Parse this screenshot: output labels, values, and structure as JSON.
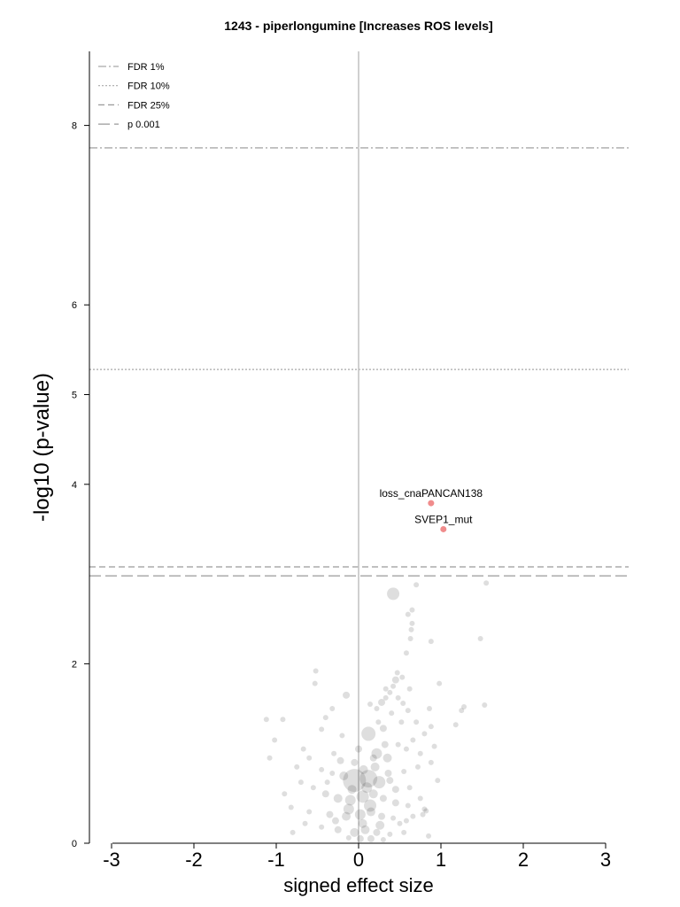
{
  "chart_data": {
    "type": "scatter",
    "title": "1243 - piperlongumine [Increases ROS levels]",
    "xlabel": "signed effect size",
    "ylabel": "-log10 (p-value)",
    "xlim": [
      -3.25,
      3.3
    ],
    "ylim": [
      0,
      8.8
    ],
    "xticks": [
      "-3",
      "-2",
      "-1",
      "0",
      "1",
      "2",
      "3"
    ],
    "xtick_values": [
      -3,
      -2,
      -1,
      0,
      1,
      2,
      3
    ],
    "yticks": [
      "0",
      "2",
      "4",
      "5",
      "6",
      "8"
    ],
    "ytick_values": [
      0,
      2,
      4,
      5,
      6,
      8
    ],
    "legend_position": "top-left",
    "thresholds": [
      {
        "label": "FDR 1%",
        "y": 7.75,
        "style": "dashdot"
      },
      {
        "label": "FDR 10%",
        "y": 5.28,
        "style": "dotted"
      },
      {
        "label": "FDR 25%",
        "y": 3.08,
        "style": "dashed"
      },
      {
        "label": "p 0.001",
        "y": 2.98,
        "style": "longdash"
      }
    ],
    "highlighted": [
      {
        "name": "loss_cnaPANCAN138",
        "x": 0.88,
        "y": 3.79,
        "color": "#f08c8c"
      },
      {
        "name": "SVEP1_mut",
        "x": 1.03,
        "y": 3.5,
        "color": "#f08c8c"
      }
    ],
    "background_points_color": "#000000",
    "background_points_note": "Dense cloud of several hundred grey translucent features centered near x=0, y between 0 and 2.9",
    "sample_points": [
      [
        0.42,
        2.78,
        7
      ],
      [
        0.7,
        2.88,
        3
      ],
      [
        1.55,
        2.9,
        3
      ],
      [
        0.65,
        2.6,
        3
      ],
      [
        0.6,
        2.55,
        3
      ],
      [
        0.65,
        2.45,
        3
      ],
      [
        0.64,
        2.38,
        3
      ],
      [
        0.63,
        2.28,
        3
      ],
      [
        0.88,
        2.25,
        3
      ],
      [
        1.48,
        2.28,
        3
      ],
      [
        0.58,
        2.12,
        3
      ],
      [
        0.53,
        1.85,
        3
      ],
      [
        0.47,
        1.9,
        3
      ],
      [
        0.45,
        1.82,
        4
      ],
      [
        0.42,
        1.75,
        3
      ],
      [
        0.38,
        1.68,
        3
      ],
      [
        0.33,
        1.62,
        3
      ],
      [
        0.28,
        1.57,
        4
      ],
      [
        0.22,
        1.5,
        3
      ],
      [
        0.62,
        1.72,
        3
      ],
      [
        0.98,
        1.78,
        3
      ],
      [
        -0.52,
        1.92,
        3
      ],
      [
        -0.53,
        1.78,
        3
      ],
      [
        -0.15,
        1.65,
        4
      ],
      [
        -0.32,
        1.5,
        3
      ],
      [
        -0.4,
        1.4,
        3
      ],
      [
        -1.12,
        1.38,
        3
      ],
      [
        -0.92,
        1.38,
        3
      ],
      [
        -0.45,
        1.27,
        3
      ],
      [
        1.25,
        1.48,
        3
      ],
      [
        1.28,
        1.52,
        3
      ],
      [
        1.53,
        1.54,
        3
      ],
      [
        1.18,
        1.32,
        3
      ],
      [
        -1.02,
        1.15,
        3
      ],
      [
        -0.67,
        1.05,
        3
      ],
      [
        0.12,
        1.22,
        8
      ],
      [
        0.3,
        1.28,
        4
      ],
      [
        0.52,
        1.35,
        3
      ],
      [
        0.86,
        1.5,
        3
      ],
      [
        -0.2,
        1.2,
        3
      ],
      [
        0.22,
        1.0,
        6
      ],
      [
        0.35,
        0.95,
        5
      ],
      [
        -0.05,
        0.9,
        4
      ],
      [
        -0.45,
        0.82,
        3
      ],
      [
        -0.32,
        0.78,
        3
      ],
      [
        -0.18,
        0.75,
        5
      ],
      [
        -0.05,
        0.7,
        13
      ],
      [
        0.12,
        0.72,
        10
      ],
      [
        0.25,
        0.68,
        7
      ],
      [
        0.38,
        0.7,
        4
      ],
      [
        0.55,
        0.8,
        3
      ],
      [
        0.72,
        0.85,
        3
      ],
      [
        0.88,
        0.9,
        3
      ],
      [
        -0.7,
        0.68,
        3
      ],
      [
        -0.55,
        0.62,
        3
      ],
      [
        -0.4,
        0.55,
        4
      ],
      [
        -0.25,
        0.5,
        5
      ],
      [
        -0.1,
        0.48,
        6
      ],
      [
        0.05,
        0.52,
        7
      ],
      [
        0.18,
        0.55,
        5
      ],
      [
        0.3,
        0.5,
        4
      ],
      [
        0.45,
        0.45,
        4
      ],
      [
        0.6,
        0.42,
        3
      ],
      [
        0.75,
        0.5,
        3
      ],
      [
        -0.82,
        0.4,
        3
      ],
      [
        -0.6,
        0.35,
        3
      ],
      [
        -0.35,
        0.32,
        4
      ],
      [
        -0.15,
        0.3,
        5
      ],
      [
        0.02,
        0.32,
        6
      ],
      [
        0.15,
        0.35,
        5
      ],
      [
        0.28,
        0.3,
        4
      ],
      [
        0.42,
        0.28,
        3
      ],
      [
        0.58,
        0.25,
        3
      ],
      [
        0.8,
        0.38,
        3
      ],
      [
        -0.45,
        0.18,
        3
      ],
      [
        -0.25,
        0.15,
        4
      ],
      [
        -0.05,
        0.12,
        5
      ],
      [
        0.08,
        0.15,
        5
      ],
      [
        0.22,
        0.12,
        4
      ],
      [
        0.38,
        0.1,
        3
      ],
      [
        0.55,
        0.12,
        3
      ],
      [
        -0.8,
        0.12,
        3
      ],
      [
        0.02,
        0.05,
        4
      ],
      [
        0.15,
        0.05,
        4
      ],
      [
        -0.12,
        0.06,
        3
      ],
      [
        0.3,
        0.04,
        3
      ],
      [
        0.85,
        0.08,
        3
      ],
      [
        0.82,
        0.36,
        3
      ],
      [
        0.78,
        0.32,
        3
      ],
      [
        -0.65,
        0.22,
        3
      ],
      [
        -1.08,
        0.95,
        3
      ],
      [
        0.05,
        0.22,
        5
      ],
      [
        0.1,
        0.62,
        6
      ],
      [
        0.2,
        0.85,
        5
      ],
      [
        -0.08,
        0.6,
        5
      ],
      [
        0.32,
        1.1,
        4
      ],
      [
        0.48,
        1.1,
        3
      ],
      [
        0.58,
        1.05,
        3
      ],
      [
        0.66,
        1.15,
        3
      ],
      [
        0.4,
        1.45,
        3
      ],
      [
        0.14,
        0.42,
        7
      ],
      [
        0.06,
        0.82,
        5
      ],
      [
        -0.22,
        0.92,
        4
      ],
      [
        -0.3,
        1.0,
        3
      ],
      [
        0.26,
        0.2,
        5
      ],
      [
        0.45,
        0.6,
        4
      ],
      [
        0.62,
        0.62,
        3
      ],
      [
        -0.12,
        0.38,
        6
      ],
      [
        0.0,
        1.05,
        4
      ],
      [
        -0.6,
        0.95,
        3
      ],
      [
        0.75,
        1.0,
        3
      ],
      [
        0.8,
        1.22,
        3
      ],
      [
        0.7,
        1.35,
        3
      ],
      [
        0.92,
        1.08,
        3
      ],
      [
        -0.28,
        0.25,
        4
      ],
      [
        0.36,
        0.78,
        4
      ],
      [
        0.18,
        0.95,
        4
      ],
      [
        -0.38,
        0.68,
        3
      ],
      [
        0.5,
        0.22,
        3
      ],
      [
        0.66,
        0.3,
        3
      ],
      [
        0.96,
        0.7,
        3
      ],
      [
        -0.9,
        0.55,
        3
      ],
      [
        -0.75,
        0.85,
        3
      ],
      [
        0.24,
        1.35,
        3
      ],
      [
        0.14,
        1.55,
        3
      ],
      [
        0.33,
        1.72,
        3
      ],
      [
        0.48,
        1.62,
        3
      ],
      [
        0.54,
        1.56,
        3
      ],
      [
        0.6,
        1.48,
        3
      ],
      [
        0.88,
        1.3,
        3
      ]
    ]
  }
}
